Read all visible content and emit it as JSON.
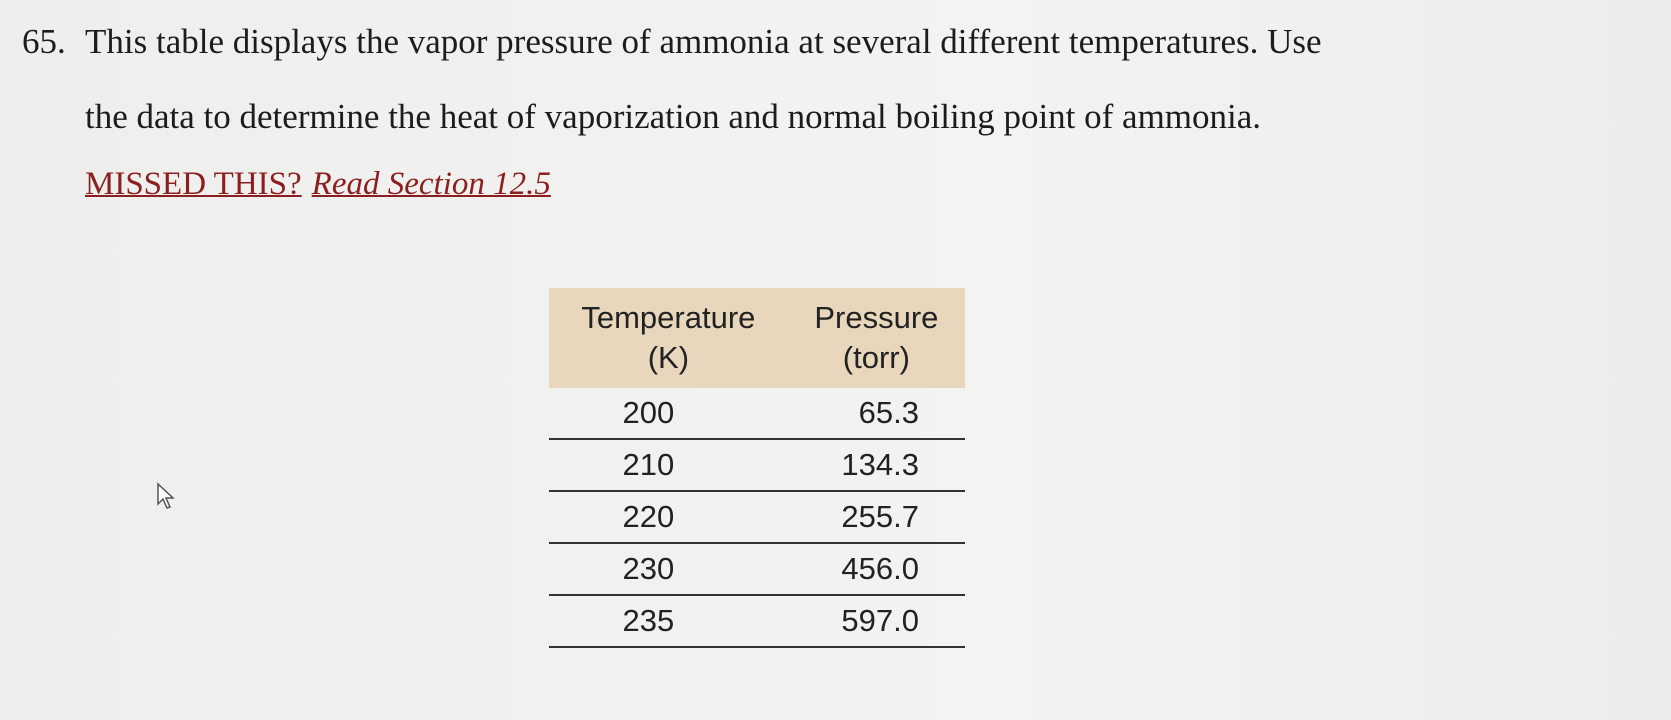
{
  "problem": {
    "number": "65.",
    "lines": [
      "This table displays the vapor pressure of ammonia at several different temperatures. Use",
      "the data to determine the heat of vaporization and normal boiling point of ammonia."
    ],
    "missed": "MISSED THIS?",
    "read": "Read Section 12.5"
  },
  "table": {
    "header": [
      [
        "Temperature",
        "(K)"
      ],
      [
        "Pressure",
        "(torr)"
      ]
    ],
    "rows": [
      [
        "200",
        "65.3"
      ],
      [
        "210",
        "134.3"
      ],
      [
        "220",
        "255.7"
      ],
      [
        "230",
        "456.0"
      ],
      [
        "235",
        "597.0"
      ]
    ]
  }
}
